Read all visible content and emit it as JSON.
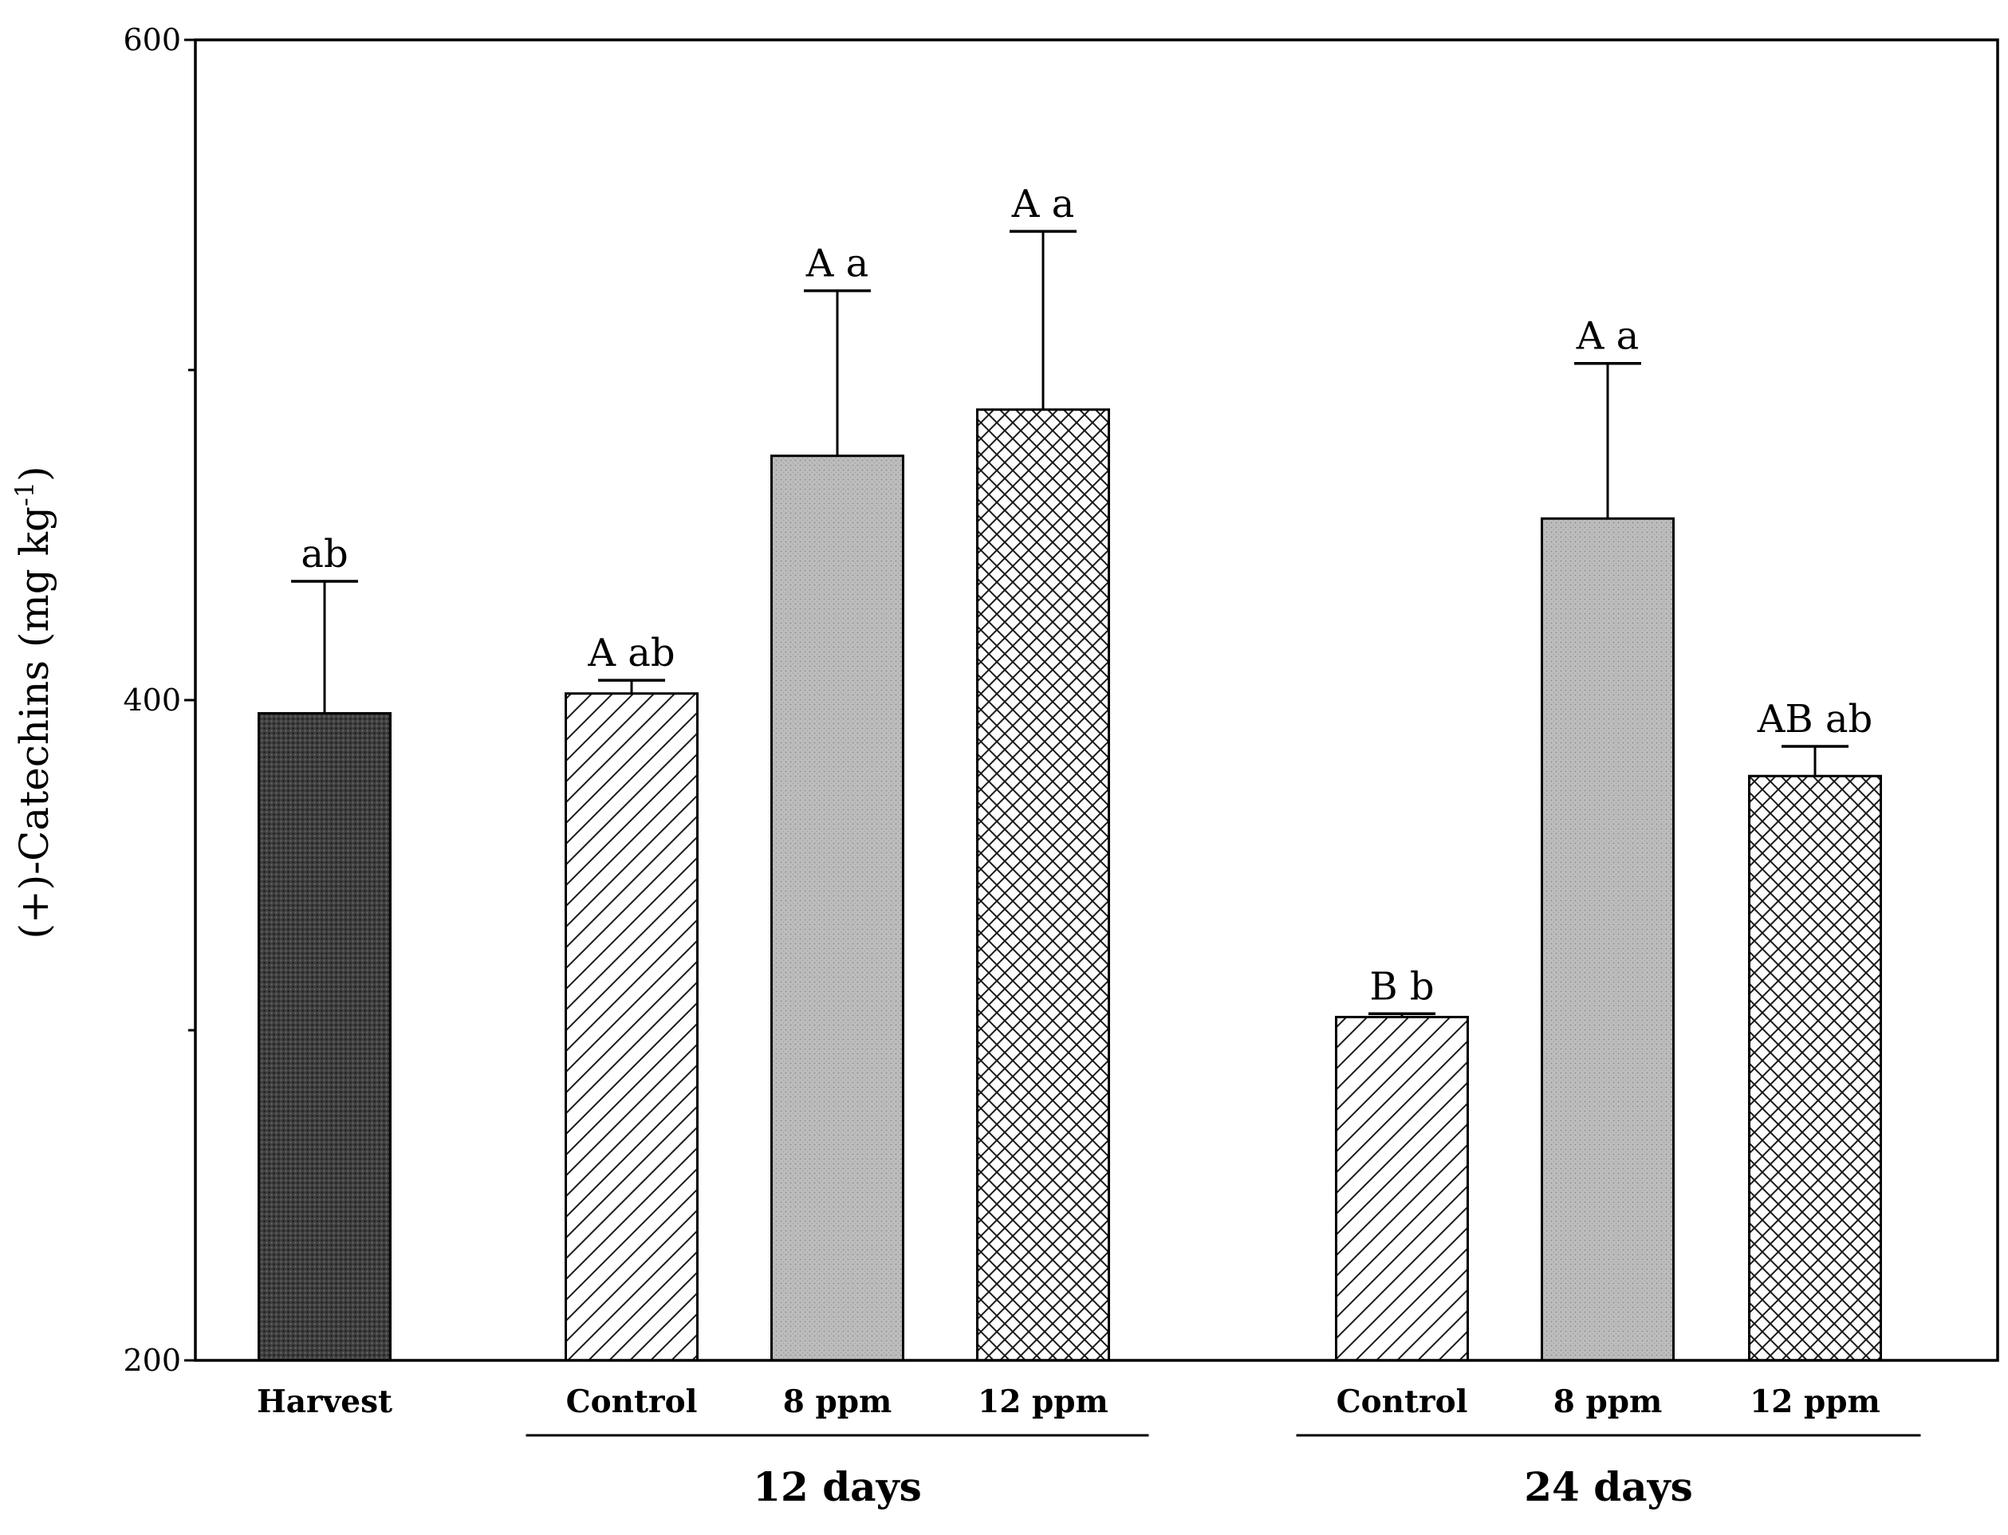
{
  "chart_data": {
    "type": "bar",
    "title": "",
    "xlabel": "",
    "ylabel": "(+)-Catechins (mg kg",
    "ylabel_superscript": "-1",
    "ylabel_close": ")",
    "ylim": [
      200,
      600
    ],
    "yticks": [
      200,
      400,
      600
    ],
    "ytick_labels": [
      "200",
      "400",
      "600"
    ],
    "minor_yticks": [
      300,
      500
    ],
    "categories": [
      "Harvest",
      "Control",
      "8 ppm",
      "12 ppm",
      "Control",
      "8 ppm",
      "12 ppm"
    ],
    "groups": [
      {
        "label": "12 days",
        "from": 1,
        "to": 3
      },
      {
        "label": "24 days",
        "from": 4,
        "to": 6
      }
    ],
    "values": [
      396,
      402,
      474,
      488,
      304,
      455,
      377
    ],
    "errors": [
      40,
      4,
      50,
      54,
      1,
      47,
      9
    ],
    "significance": [
      "ab",
      "A  ab",
      "A  a",
      "A  a",
      "B  b",
      "A  a",
      "AB  ab"
    ],
    "patterns": [
      "dark-dots",
      "diag-lines",
      "gray-dots",
      "crosshatch",
      "diag-lines",
      "gray-dots",
      "crosshatch"
    ]
  }
}
